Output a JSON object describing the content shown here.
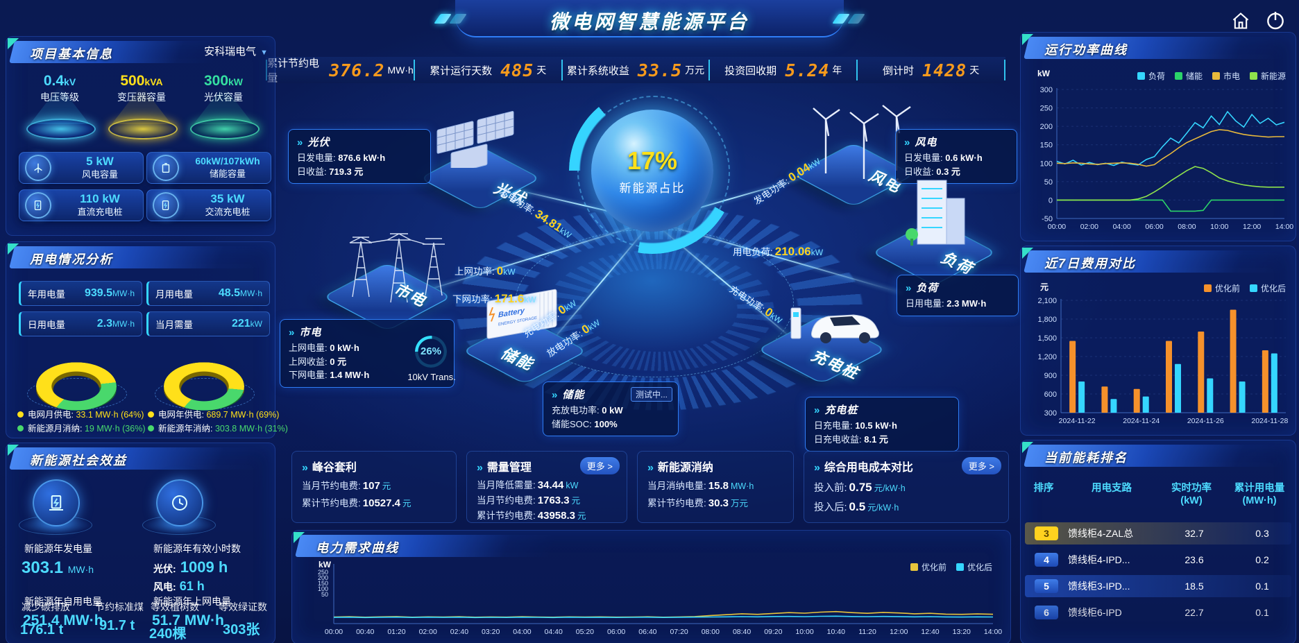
{
  "header": {
    "title": "微电网智慧能源平台"
  },
  "kpis": [
    {
      "label": "累计节约电量",
      "value": "376.2",
      "unit": "MW·h"
    },
    {
      "label": "累计运行天数",
      "value": "485",
      "unit": "天"
    },
    {
      "label": "累计系统收益",
      "value": "33.5",
      "unit": "万元"
    },
    {
      "label": "投资回收期",
      "value": "5.24",
      "unit": "年"
    },
    {
      "label": "倒计时",
      "value": "1428",
      "unit": "天"
    }
  ],
  "project": {
    "title": "项目基本信息",
    "company": "安科瑞电气",
    "pedestals": [
      {
        "value": "0.4",
        "unit": "kV",
        "label": "电压等级"
      },
      {
        "value": "500",
        "unit": "kVA",
        "label": "变压器容量"
      },
      {
        "value": "300",
        "unit": "kW",
        "label": "光伏容量"
      }
    ],
    "stats": [
      {
        "value": "5 kW",
        "label": "风电容量"
      },
      {
        "value": "60kW/107kWh",
        "label": "储能容量"
      },
      {
        "value": "110 kW",
        "label": "直流充电桩"
      },
      {
        "value": "35 kW",
        "label": "交流充电桩"
      }
    ]
  },
  "power_analysis": {
    "title": "用电情况分析",
    "metrics": [
      {
        "label": "年用电量",
        "value": "939.5",
        "unit": "MW·h"
      },
      {
        "label": "月用电量",
        "value": "48.5",
        "unit": "MW·h"
      },
      {
        "label": "日用电量",
        "value": "2.3",
        "unit": "MW·h"
      },
      {
        "label": "当月需量",
        "value": "221",
        "unit": "kW"
      }
    ],
    "legends": [
      {
        "label": "电网月供电:",
        "value": "33.1 MW·h (64%)",
        "color": "#ffe01a"
      },
      {
        "label": "新能源月消纳:",
        "value": "19 MW·h (36%)",
        "color": "#49d86c"
      },
      {
        "label": "电网年供电:",
        "value": "689.7 MW·h (69%)",
        "color": "#ffe01a"
      },
      {
        "label": "新能源年消纳:",
        "value": "303.8 MW·h (31%)",
        "color": "#49d86c"
      }
    ]
  },
  "social": {
    "title": "新能源社会效益",
    "col1": {
      "label1": "新能源年发电量",
      "value1": "303.1",
      "unit1": "MW·h",
      "ov_label_a": "新能源年自用电量",
      "ov_label_b": "减少碳排放",
      "ov_label_c": "节约标准煤",
      "ov_value_a": "251.4 MW·h",
      "ov_value_b": "176.1 t",
      "ov_value_c": "91.7 t"
    },
    "col2": {
      "label1": "新能源年有效小时数",
      "pv_label": "光伏:",
      "pv_value": "1009 h",
      "wind_label": "风电:",
      "wind_value": "61 h",
      "ov_label_a": "新能源年上网电量",
      "ov_label_b": "等效植树数",
      "ov_label_c": "等效绿证数",
      "ov_value_a": "51.7 MW·h",
      "ov_value_b": "240棵",
      "ov_value_c": "303张"
    }
  },
  "center": {
    "hub": {
      "percent": "17%",
      "label": "新能源占比"
    },
    "nodes": {
      "pv": {
        "name": "光伏",
        "rows": [
          [
            "日发电量:",
            "876.6 kW·h"
          ],
          [
            "日收益:",
            "719.3 元"
          ]
        ]
      },
      "wind": {
        "name": "风电",
        "rows": [
          [
            "日发电量:",
            "0.6 kW·h"
          ],
          [
            "日收益:",
            "0.3 元"
          ]
        ]
      },
      "grid": {
        "name": "市电",
        "rows": [
          [
            "上网电量:",
            "0 kW·h"
          ],
          [
            "上网收益:",
            "0 元"
          ],
          [
            "下网电量:",
            "1.4 MW·h"
          ]
        ]
      },
      "load": {
        "name": "负荷",
        "rows": [
          [
            "日用电量:",
            "2.3 MW·h"
          ]
        ]
      },
      "ess": {
        "name": "储能",
        "badge": "测试中...",
        "rows": [
          [
            "充放电功率:",
            "0 kW"
          ],
          [
            "储能SOC:",
            "100%"
          ]
        ]
      },
      "charger": {
        "name": "充电桩",
        "rows": [
          [
            "日充电量:",
            "10.5 kW·h"
          ],
          [
            "日充电收益:",
            "8.1 元"
          ]
        ]
      }
    },
    "flows": {
      "pv_gen": {
        "label": "发电功率:",
        "value": "34.81",
        "unit": "kW"
      },
      "wind_gen": {
        "label": "发电功率:",
        "value": "0.04",
        "unit": "kW"
      },
      "grid_up": {
        "label": "上网功率:",
        "value": "0",
        "unit": "kW"
      },
      "grid_down": {
        "label": "下网功率:",
        "value": "171.6",
        "unit": "kW"
      },
      "load": {
        "label": "用电负荷:",
        "value": "210.06",
        "unit": "kW"
      },
      "ess_charge": {
        "label": "充电功率:",
        "value": "0",
        "unit": "kW"
      },
      "ess_discharge": {
        "label": "放电功率:",
        "value": "0",
        "unit": "kW"
      },
      "charger_in": {
        "label": "充电功率:",
        "value": "0",
        "unit": "kW"
      }
    },
    "transformer": {
      "percent": "26%",
      "label": "10kV Trans."
    }
  },
  "cards": [
    {
      "title": "峰谷套利",
      "rows": [
        {
          "label": "当月节约电费:",
          "value": "107",
          "unit": "元"
        },
        {
          "label": "累计节约电费:",
          "value": "10527.4",
          "unit": "元"
        }
      ]
    },
    {
      "title": "需量管理",
      "more": "更多 >",
      "rows": [
        {
          "label": "当月降低需量:",
          "value": "34.44",
          "unit": "kW"
        },
        {
          "label": "当月节约电费:",
          "value": "1763.3",
          "unit": "元"
        },
        {
          "label": "累计节约电费:",
          "value": "43958.3",
          "unit": "元"
        }
      ]
    },
    {
      "title": "新能源消纳",
      "rows": [
        {
          "label": "当月消纳电量:",
          "value": "15.8",
          "unit": "MW·h"
        },
        {
          "label": "累计节约电费:",
          "value": "30.3",
          "unit": "万元"
        }
      ]
    },
    {
      "title": "综合用电成本对比",
      "more": "更多 >",
      "rows": [
        {
          "label": "投入前:",
          "value": "0.75",
          "unit": "元/kW·h"
        },
        {
          "label": "投入后:",
          "value": "0.5",
          "unit": "元/kW·h"
        }
      ]
    }
  ],
  "ranking": {
    "title": "当前能耗排名",
    "columns": [
      {
        "l1": "排序",
        "l2": ""
      },
      {
        "l1": "用电支路",
        "l2": ""
      },
      {
        "l1": "实时功率",
        "l2": "(kW)"
      },
      {
        "l1": "累计用电量",
        "l2": "(MW·h)"
      }
    ],
    "rows": [
      {
        "rank": "3",
        "branch": "馈线柜4-ZAL总",
        "power": "32.7",
        "energy": "0.3"
      },
      {
        "rank": "4",
        "branch": "馈线柜4-IPD...",
        "power": "23.6",
        "energy": "0.2"
      },
      {
        "rank": "5",
        "branch": "馈线柜3-IPD...",
        "power": "18.5",
        "energy": "0.1"
      },
      {
        "rank": "6",
        "branch": "馈线柜6-IPD",
        "power": "22.7",
        "energy": "0.1"
      }
    ]
  },
  "chart_data": [
    {
      "id": "run_power",
      "type": "line",
      "title": "运行功率曲线",
      "unit": "kW",
      "ylim": [
        -50,
        300
      ],
      "yticks": [
        300,
        250,
        200,
        150,
        100,
        50,
        0,
        -50
      ],
      "x_labels": [
        "00:00",
        "02:00",
        "04:00",
        "06:00",
        "08:00",
        "10:00",
        "12:00",
        "14:00"
      ],
      "legend_position": "top-right",
      "grid": true,
      "series": [
        {
          "name": "负荷",
          "color": "#35d6ff",
          "values": [
            105,
            98,
            108,
            95,
            102,
            96,
            100,
            94,
            103,
            98,
            95,
            110,
            118,
            145,
            168,
            155,
            182,
            210,
            196,
            228,
            205,
            240,
            215,
            198,
            232,
            208,
            222,
            204,
            211
          ]
        },
        {
          "name": "储能",
          "color": "#2bd469",
          "values": [
            0,
            0,
            0,
            0,
            0,
            0,
            0,
            0,
            0,
            0,
            0,
            0,
            0,
            0,
            -30,
            -30,
            -30,
            -30,
            -28,
            0,
            0,
            0,
            0,
            0,
            0,
            0,
            0,
            0,
            0
          ]
        },
        {
          "name": "市电",
          "color": "#e8b93c",
          "values": [
            100,
            99,
            101,
            100,
            98,
            97,
            99,
            100,
            101,
            100,
            97,
            92,
            96,
            112,
            126,
            142,
            156,
            166,
            176,
            186,
            191,
            189,
            183,
            178,
            175,
            173,
            171,
            172,
            172
          ]
        },
        {
          "name": "新能源",
          "color": "#8fe34c",
          "values": [
            0,
            0,
            0,
            0,
            0,
            0,
            0,
            0,
            0,
            0,
            3,
            10,
            22,
            36,
            52,
            66,
            80,
            91,
            86,
            74,
            60,
            52,
            46,
            41,
            38,
            36,
            35,
            35,
            35
          ]
        }
      ]
    },
    {
      "id": "cost7",
      "type": "bar",
      "title": "近7日费用对比",
      "unit": "元",
      "ylim": [
        300,
        2100
      ],
      "yticks": [
        2100,
        1800,
        1500,
        1200,
        900,
        600,
        300
      ],
      "categories": [
        "2024-11-22",
        "2024-11-23",
        "2024-11-24",
        "2024-11-25",
        "2024-11-26",
        "2024-11-27",
        "2024-11-28"
      ],
      "x_labels": [
        "2024-11-22",
        "",
        "2024-11-24",
        "",
        "2024-11-26",
        "",
        "2024-11-28"
      ],
      "legend_position": "top-right",
      "grid": true,
      "series": [
        {
          "name": "优化前",
          "color": "#f5912b",
          "values": [
            1450,
            720,
            680,
            1450,
            1600,
            1950,
            1300
          ]
        },
        {
          "name": "优化后",
          "color": "#35d6ff",
          "values": [
            800,
            520,
            560,
            1080,
            850,
            800,
            1250
          ]
        }
      ]
    },
    {
      "id": "demand",
      "type": "line",
      "title": "电力需求曲线",
      "unit": "kW",
      "ylim": [
        0,
        1000
      ],
      "yticks": [],
      "glitch_ticks": [
        "250",
        "200",
        "150",
        "100",
        "50"
      ],
      "x_labels": [
        "00:00",
        "00:40",
        "01:20",
        "02:00",
        "02:40",
        "03:20",
        "04:00",
        "04:40",
        "05:20",
        "06:00",
        "06:40",
        "07:20",
        "08:00",
        "08:40",
        "09:20",
        "10:00",
        "10:40",
        "11:20",
        "12:00",
        "12:40",
        "13:20",
        "14:00"
      ],
      "legend_position": "top-right",
      "grid": false,
      "series": [
        {
          "name": "优化前",
          "color": "#e8c53c",
          "values": [
            112,
            118,
            109,
            115,
            120,
            110,
            116,
            112,
            118,
            109,
            114,
            111,
            119,
            113,
            110,
            116,
            112,
            115,
            111,
            113,
            117,
            110,
            114,
            120,
            138,
            152,
            168,
            158,
            174,
            188,
            178,
            196,
            206,
            188,
            176,
            192,
            182,
            168,
            176,
            162,
            158,
            166,
            160
          ]
        },
        {
          "name": "优化后",
          "color": "#35d6ff",
          "values": [
            106,
            109,
            104,
            108,
            111,
            105,
            109,
            106,
            110,
            104,
            107,
            105,
            110,
            107,
            104,
            109,
            106,
            108,
            105,
            107,
            110,
            105,
            108,
            111,
            113,
            116,
            119,
            115,
            121,
            123,
            119,
            125,
            127,
            122,
            119,
            123,
            120,
            116,
            119,
            114,
            112,
            115,
            113
          ]
        }
      ]
    },
    {
      "id": "month_mix",
      "type": "pie",
      "labels": [
        "电网月供电",
        "新能源月消纳"
      ],
      "values": [
        64,
        36
      ],
      "colors": [
        "#ffe01a",
        "#49d86c"
      ],
      "side_colors": [
        "#b99f00",
        "#2a9b4a"
      ]
    },
    {
      "id": "year_mix",
      "type": "pie",
      "labels": [
        "电网年供电",
        "新能源年消纳"
      ],
      "values": [
        69,
        31
      ],
      "colors": [
        "#ffe01a",
        "#49d86c"
      ],
      "side_colors": [
        "#b99f00",
        "#2a9b4a"
      ]
    }
  ]
}
